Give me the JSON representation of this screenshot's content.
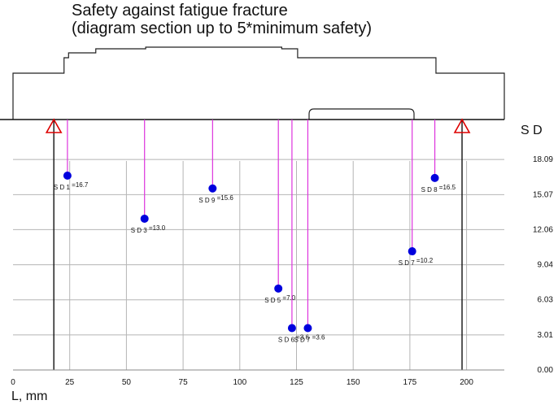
{
  "title_line1": "Safety against fatigue fracture",
  "title_line2": "(diagram section up to 5*minimum safety)",
  "chart_data": {
    "type": "scatter",
    "title": "Safety against fatigue fracture",
    "subtitle": "(diagram section up to 5*minimum safety)",
    "xlabel": "L, mm",
    "ylabel": "S D",
    "xlim": [
      0,
      217
    ],
    "ylim": [
      0,
      18.09
    ],
    "x_ticks": [
      "0",
      "25",
      "50",
      "75",
      "100",
      "125",
      "150",
      "175",
      "200"
    ],
    "y_ticks": [
      "0.00",
      "3.01",
      "6.03",
      "9.04",
      "12.06",
      "15.07",
      "18.09"
    ],
    "grid": true,
    "bearings_x": [
      18,
      198
    ],
    "shaft_steps": [
      {
        "x0": 0,
        "x1": 22,
        "radius": "small"
      },
      {
        "x0": 22,
        "x1": 24,
        "radius": "medium"
      },
      {
        "x0": 24,
        "x1": 36,
        "radius": "large"
      },
      {
        "x0": 36,
        "x1": 58,
        "radius": "larger"
      },
      {
        "x0": 58,
        "x1": 118,
        "radius": "largest"
      },
      {
        "x0": 118,
        "x1": 125,
        "radius": "larger"
      },
      {
        "x0": 125,
        "x1": 186,
        "radius": "medium"
      },
      {
        "x0": 186,
        "x1": 217,
        "radius": "small"
      }
    ],
    "points": [
      {
        "label": "S D 1 =16.7",
        "sub": "1",
        "x": 24,
        "y": 16.7
      },
      {
        "label": "S D 3 =13.0",
        "sub": "3",
        "x": 58,
        "y": 13.0
      },
      {
        "label": "S D 9 =15.6",
        "sub": "9",
        "x": 88,
        "y": 15.6
      },
      {
        "label": "S D 5 =7.0",
        "sub": "5",
        "x": 117,
        "y": 7.0
      },
      {
        "label": "S D 6 =3.6",
        "sub": "6",
        "x": 123,
        "y": 3.6
      },
      {
        "label": "S D 7 =3.6",
        "sub": "7",
        "x": 130,
        "y": 3.6
      },
      {
        "label": "S D 7 =10.2",
        "sub": "7",
        "x": 176,
        "y": 10.2
      },
      {
        "label": "S D 8 =16.5",
        "sub": "8",
        "x": 186,
        "y": 16.5
      }
    ],
    "colors": {
      "point": "#0000dd",
      "leader": "#dd33dd",
      "bearing": "#dd0000",
      "grid": "#b5b5b5"
    }
  }
}
